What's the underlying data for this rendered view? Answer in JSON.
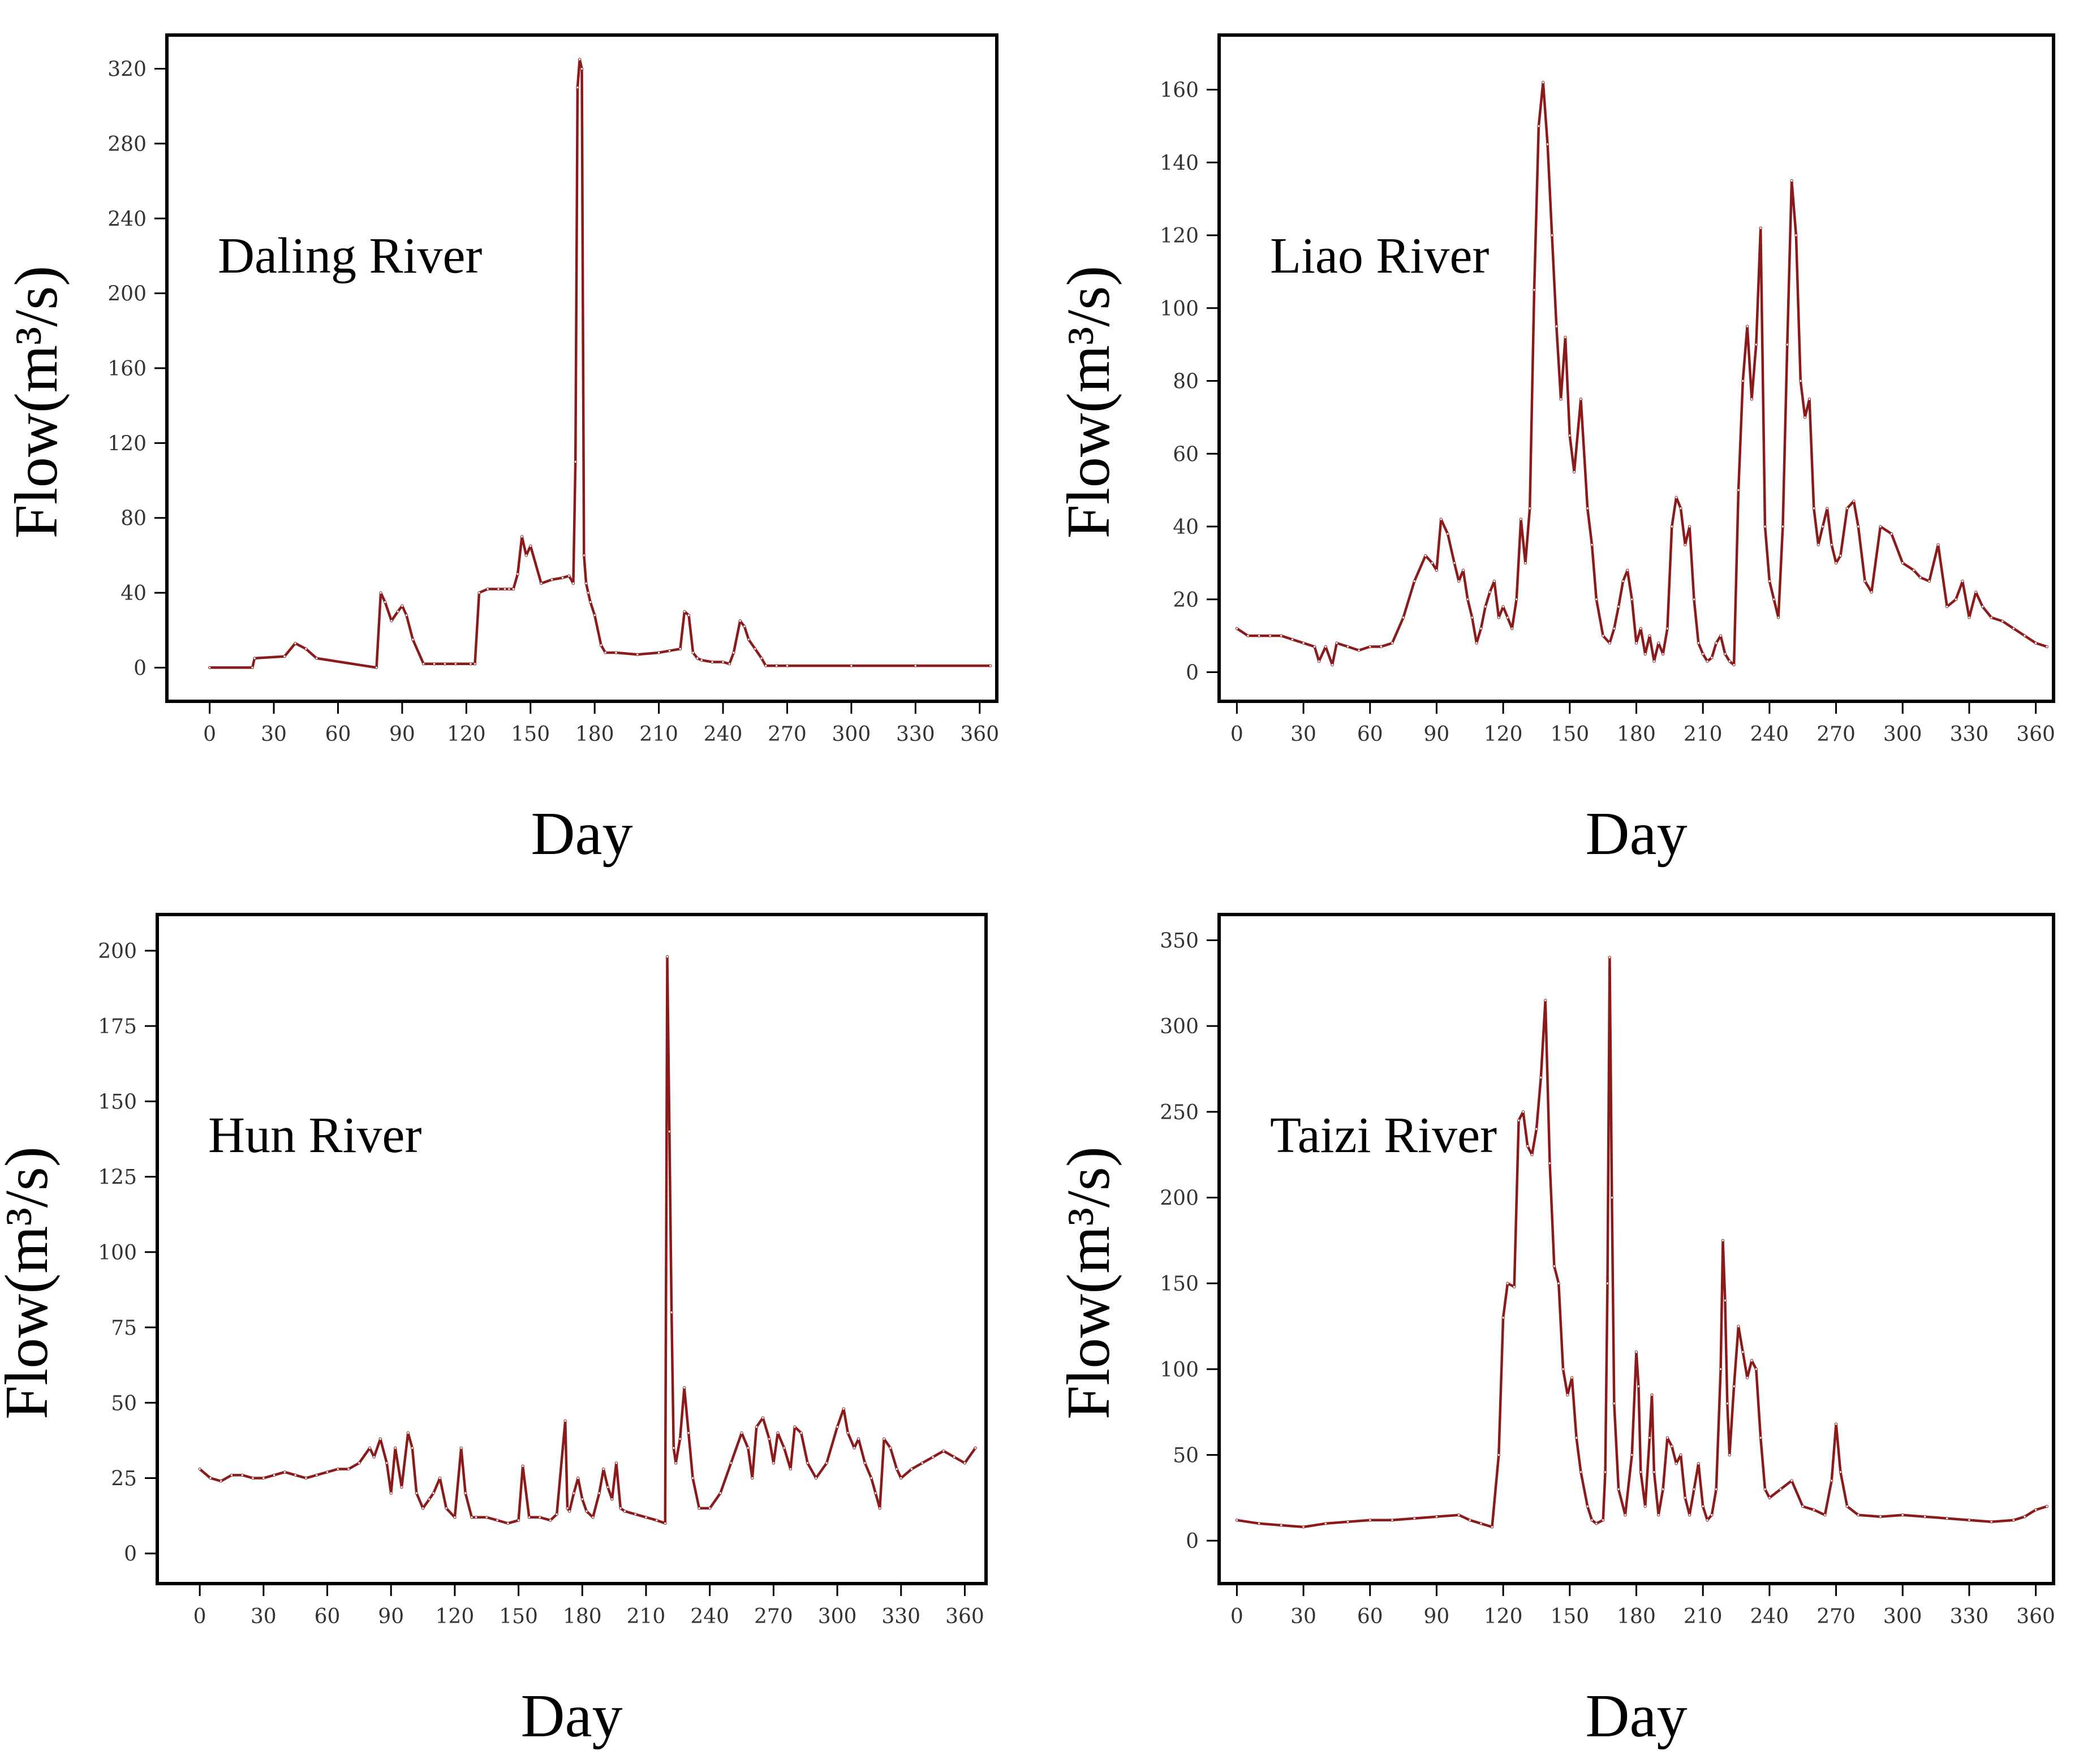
{
  "series_color": "#8b1a1a",
  "y_axis_title": "Flow(m³/s)",
  "chart_data": [
    {
      "type": "line",
      "panel_label": "Daling River",
      "xlabel": "Day",
      "ylabel": "Flow(m³/s)",
      "xlim": [
        -20,
        368
      ],
      "ylim": [
        -18,
        338
      ],
      "x_ticks": [
        0,
        30,
        60,
        90,
        120,
        150,
        180,
        210,
        240,
        270,
        300,
        330,
        360
      ],
      "y_ticks": [
        0,
        40,
        80,
        120,
        160,
        200,
        240,
        280,
        320
      ],
      "x": [
        0,
        20,
        21,
        35,
        40,
        45,
        50,
        78,
        80,
        82,
        85,
        88,
        90,
        92,
        95,
        100,
        105,
        110,
        115,
        122,
        124,
        126,
        130,
        135,
        138,
        140,
        142,
        144,
        146,
        148,
        150,
        155,
        160,
        165,
        168,
        170,
        171,
        172,
        173,
        174,
        175,
        176,
        177,
        178,
        180,
        183,
        185,
        190,
        200,
        210,
        215,
        220,
        222,
        224,
        226,
        228,
        230,
        235,
        240,
        243,
        245,
        248,
        250,
        252,
        255,
        258,
        260,
        265,
        270,
        300,
        330,
        365
      ],
      "values": [
        0,
        0,
        5,
        6,
        13,
        10,
        5,
        0,
        40,
        35,
        25,
        30,
        33,
        28,
        15,
        2,
        2,
        2,
        2,
        2,
        2,
        40,
        42,
        42,
        42,
        42,
        42,
        50,
        70,
        60,
        65,
        45,
        47,
        48,
        49,
        45,
        110,
        310,
        325,
        320,
        60,
        45,
        40,
        35,
        28,
        12,
        8,
        8,
        7,
        8,
        9,
        10,
        30,
        28,
        8,
        5,
        4,
        3,
        3,
        2,
        8,
        25,
        22,
        15,
        10,
        5,
        1,
        1,
        1,
        1,
        1,
        1
      ]
    },
    {
      "type": "line",
      "panel_label": "Liao River",
      "xlabel": "Day",
      "ylabel": "Flow(m³/s)",
      "xlim": [
        -8,
        368
      ],
      "ylim": [
        -8,
        175
      ],
      "x_ticks": [
        0,
        30,
        60,
        90,
        120,
        150,
        180,
        210,
        240,
        270,
        300,
        330,
        360
      ],
      "y_ticks": [
        0,
        20,
        40,
        60,
        80,
        100,
        120,
        140,
        160
      ],
      "x": [
        0,
        5,
        10,
        15,
        20,
        25,
        30,
        35,
        37,
        40,
        43,
        45,
        50,
        55,
        60,
        65,
        70,
        75,
        80,
        85,
        88,
        90,
        92,
        95,
        98,
        100,
        102,
        104,
        106,
        108,
        110,
        112,
        114,
        116,
        118,
        120,
        122,
        124,
        126,
        128,
        130,
        132,
        134,
        136,
        138,
        140,
        142,
        144,
        146,
        148,
        150,
        152,
        155,
        158,
        160,
        162,
        165,
        168,
        170,
        172,
        174,
        176,
        178,
        180,
        182,
        184,
        186,
        188,
        190,
        192,
        194,
        196,
        198,
        200,
        202,
        204,
        206,
        208,
        210,
        212,
        214,
        216,
        218,
        220,
        222,
        224,
        226,
        228,
        230,
        232,
        234,
        236,
        238,
        240,
        242,
        244,
        246,
        248,
        250,
        252,
        254,
        256,
        258,
        260,
        262,
        264,
        266,
        268,
        270,
        272,
        275,
        278,
        280,
        283,
        286,
        290,
        295,
        300,
        305,
        308,
        312,
        316,
        320,
        324,
        327,
        330,
        333,
        336,
        340,
        345,
        350,
        355,
        360,
        365
      ],
      "values": [
        12,
        10,
        10,
        10,
        10,
        9,
        8,
        7,
        3,
        7,
        2,
        8,
        7,
        6,
        7,
        7,
        8,
        15,
        25,
        32,
        30,
        28,
        42,
        38,
        30,
        25,
        28,
        20,
        15,
        8,
        12,
        18,
        22,
        25,
        15,
        18,
        15,
        12,
        20,
        42,
        30,
        45,
        105,
        150,
        162,
        145,
        120,
        95,
        75,
        92,
        65,
        55,
        75,
        45,
        35,
        20,
        10,
        8,
        12,
        18,
        25,
        28,
        20,
        8,
        12,
        5,
        10,
        3,
        8,
        5,
        12,
        40,
        48,
        45,
        35,
        40,
        20,
        8,
        5,
        3,
        4,
        8,
        10,
        5,
        3,
        2,
        50,
        80,
        95,
        75,
        90,
        122,
        40,
        25,
        20,
        15,
        40,
        90,
        135,
        120,
        80,
        70,
        75,
        45,
        35,
        40,
        45,
        35,
        30,
        32,
        45,
        47,
        40,
        25,
        22,
        40,
        38,
        30,
        28,
        26,
        25,
        35,
        18,
        20,
        25,
        15,
        22,
        18,
        15,
        14,
        12,
        10,
        8,
        7
      ]
    },
    {
      "type": "line",
      "panel_label": "Hun River",
      "xlabel": "Day",
      "ylabel": "Flow(m³/s)",
      "xlim": [
        -20,
        370
      ],
      "ylim": [
        -10,
        212
      ],
      "x_ticks": [
        0,
        30,
        60,
        90,
        120,
        150,
        180,
        210,
        240,
        270,
        300,
        330,
        360
      ],
      "y_ticks": [
        0,
        25,
        50,
        75,
        100,
        125,
        150,
        175,
        200
      ],
      "x": [
        0,
        5,
        10,
        15,
        20,
        25,
        30,
        35,
        40,
        45,
        50,
        55,
        60,
        65,
        70,
        75,
        80,
        82,
        85,
        88,
        90,
        92,
        95,
        98,
        100,
        102,
        105,
        108,
        110,
        113,
        116,
        120,
        123,
        125,
        128,
        130,
        135,
        140,
        145,
        150,
        152,
        155,
        160,
        165,
        168,
        172,
        173,
        174,
        176,
        178,
        180,
        182,
        185,
        188,
        190,
        192,
        194,
        196,
        198,
        200,
        205,
        210,
        215,
        219,
        220,
        221,
        222,
        223,
        224,
        226,
        228,
        230,
        232,
        235,
        240,
        245,
        250,
        255,
        258,
        260,
        262,
        265,
        268,
        270,
        272,
        275,
        278,
        280,
        283,
        286,
        290,
        295,
        300,
        303,
        305,
        308,
        310,
        313,
        316,
        318,
        320,
        322,
        325,
        328,
        330,
        335,
        340,
        345,
        350,
        355,
        360,
        365
      ],
      "values": [
        28,
        25,
        24,
        26,
        26,
        25,
        25,
        26,
        27,
        26,
        25,
        26,
        27,
        28,
        28,
        30,
        35,
        32,
        38,
        30,
        20,
        35,
        22,
        40,
        35,
        20,
        15,
        18,
        20,
        25,
        15,
        12,
        35,
        20,
        12,
        12,
        12,
        11,
        10,
        11,
        29,
        12,
        12,
        11,
        13,
        44,
        15,
        14,
        20,
        25,
        18,
        14,
        12,
        20,
        28,
        22,
        18,
        30,
        15,
        14,
        13,
        12,
        11,
        10,
        198,
        140,
        80,
        35,
        30,
        38,
        55,
        40,
        25,
        15,
        15,
        20,
        30,
        40,
        35,
        25,
        42,
        45,
        38,
        30,
        40,
        35,
        28,
        42,
        40,
        30,
        25,
        30,
        42,
        48,
        40,
        35,
        38,
        30,
        25,
        20,
        15,
        38,
        35,
        28,
        25,
        28,
        30,
        32,
        34,
        32,
        30,
        35
      ]
    },
    {
      "type": "line",
      "panel_label": "Taizi River",
      "xlabel": "Day",
      "ylabel": "Flow(m³/s)",
      "xlim": [
        -8,
        368
      ],
      "ylim": [
        -25,
        365
      ],
      "x_ticks": [
        0,
        30,
        60,
        90,
        120,
        150,
        180,
        210,
        240,
        270,
        300,
        330,
        360
      ],
      "y_ticks": [
        0,
        50,
        100,
        150,
        200,
        250,
        300,
        350
      ],
      "x": [
        0,
        10,
        20,
        30,
        40,
        50,
        60,
        70,
        80,
        90,
        100,
        105,
        110,
        115,
        118,
        120,
        122,
        125,
        127,
        129,
        131,
        133,
        135,
        137,
        139,
        141,
        143,
        145,
        147,
        149,
        151,
        153,
        155,
        158,
        160,
        162,
        165,
        166,
        167,
        168,
        169,
        170,
        172,
        175,
        178,
        180,
        181,
        182,
        184,
        186,
        187,
        188,
        190,
        192,
        194,
        196,
        198,
        200,
        202,
        204,
        206,
        208,
        210,
        212,
        214,
        216,
        218,
        219,
        220,
        221,
        222,
        224,
        226,
        228,
        230,
        232,
        234,
        236,
        238,
        240,
        245,
        250,
        255,
        260,
        265,
        268,
        270,
        272,
        275,
        280,
        290,
        300,
        310,
        320,
        330,
        340,
        350,
        355,
        360,
        365
      ],
      "values": [
        12,
        10,
        9,
        8,
        10,
        11,
        12,
        12,
        13,
        14,
        15,
        12,
        10,
        8,
        50,
        130,
        150,
        148,
        245,
        250,
        230,
        225,
        240,
        270,
        315,
        220,
        160,
        150,
        100,
        85,
        95,
        60,
        40,
        20,
        12,
        10,
        12,
        40,
        150,
        340,
        200,
        80,
        30,
        15,
        50,
        110,
        90,
        40,
        20,
        60,
        85,
        40,
        15,
        30,
        60,
        55,
        45,
        50,
        25,
        15,
        30,
        45,
        20,
        12,
        15,
        30,
        100,
        175,
        140,
        80,
        50,
        90,
        125,
        110,
        95,
        105,
        100,
        60,
        30,
        25,
        30,
        35,
        20,
        18,
        15,
        35,
        68,
        40,
        20,
        15,
        14,
        15,
        14,
        13,
        12,
        11,
        12,
        14,
        18,
        20
      ]
    }
  ]
}
